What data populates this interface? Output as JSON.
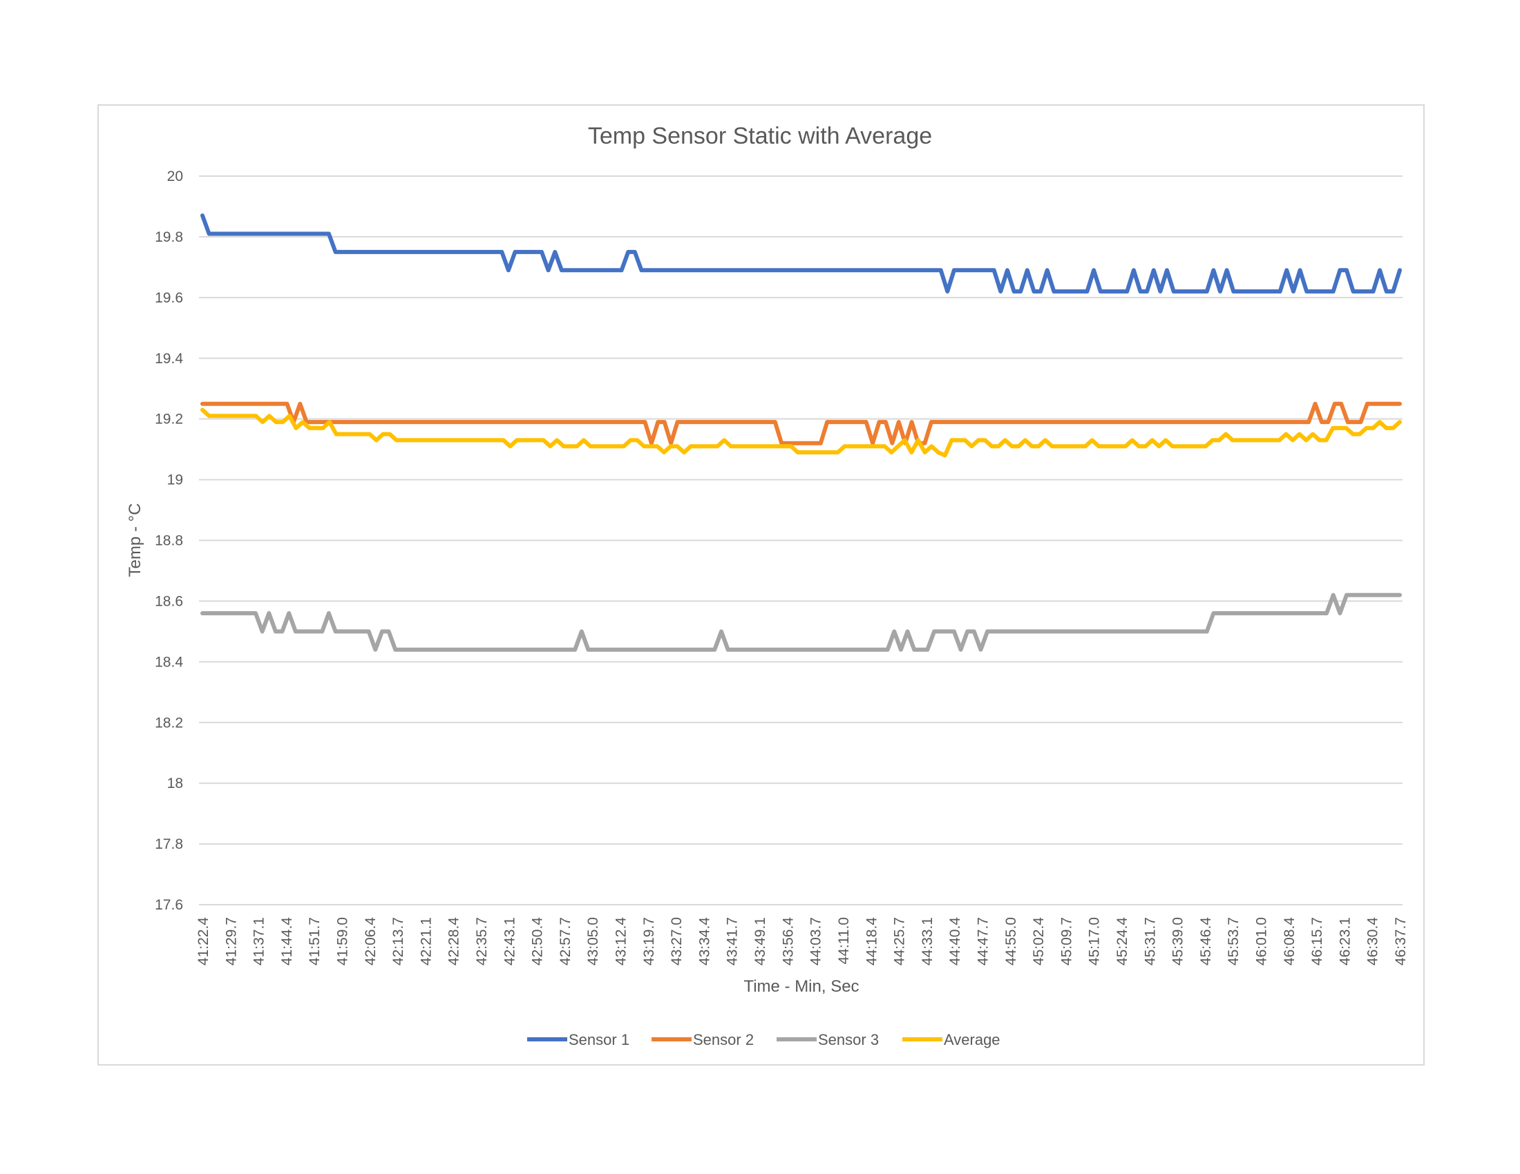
{
  "chart_data": {
    "type": "line",
    "title": "Temp Sensor Static with Average",
    "xlabel": "Time - Min, Sec",
    "ylabel": "Temp - °C",
    "ylim": [
      17.6,
      20
    ],
    "yticks": [
      "20",
      "19.8",
      "19.6",
      "19.4",
      "19.2",
      "19",
      "18.8",
      "18.6",
      "18.4",
      "18.2",
      "18",
      "17.8",
      "17.6"
    ],
    "ytick_values": [
      20,
      19.8,
      19.6,
      19.4,
      19.2,
      19,
      18.8,
      18.6,
      18.4,
      18.2,
      18,
      17.8,
      17.6
    ],
    "grid": true,
    "legend_position": "bottom",
    "x_tick_labels": [
      "41:22.4",
      "41:29.7",
      "41:37.1",
      "41:44.4",
      "41:51.7",
      "41:59.0",
      "42:06.4",
      "42:13.7",
      "42:21.1",
      "42:28.4",
      "42:35.7",
      "42:43.1",
      "42:50.4",
      "42:57.7",
      "43:05.0",
      "43:12.4",
      "43:19.7",
      "43:27.0",
      "43:34.4",
      "43:41.7",
      "43:49.1",
      "43:56.4",
      "44:03.7",
      "44:11.0",
      "44:18.4",
      "44:25.7",
      "44:33.1",
      "44:40.4",
      "44:47.7",
      "44:55.0",
      "45:02.4",
      "45:09.7",
      "45:17.0",
      "45:24.4",
      "45:31.7",
      "45:39.0",
      "45:46.4",
      "45:53.7",
      "46:01.0",
      "46:08.4",
      "46:15.7",
      "46:23.1",
      "46:30.4",
      "46:37.7"
    ],
    "series": [
      {
        "name": "Sensor 1",
        "color": "#4472C4",
        "values": [
          19.87,
          19.81,
          19.81,
          19.81,
          19.81,
          19.81,
          19.81,
          19.81,
          19.81,
          19.81,
          19.81,
          19.81,
          19.81,
          19.81,
          19.81,
          19.81,
          19.81,
          19.81,
          19.81,
          19.81,
          19.75,
          19.75,
          19.75,
          19.75,
          19.75,
          19.75,
          19.75,
          19.75,
          19.75,
          19.75,
          19.75,
          19.75,
          19.75,
          19.75,
          19.75,
          19.75,
          19.75,
          19.75,
          19.75,
          19.75,
          19.75,
          19.75,
          19.75,
          19.75,
          19.75,
          19.75,
          19.69,
          19.75,
          19.75,
          19.75,
          19.75,
          19.75,
          19.69,
          19.75,
          19.69,
          19.69,
          19.69,
          19.69,
          19.69,
          19.69,
          19.69,
          19.69,
          19.69,
          19.69,
          19.75,
          19.75,
          19.69,
          19.69,
          19.69,
          19.69,
          19.69,
          19.69,
          19.69,
          19.69,
          19.69,
          19.69,
          19.69,
          19.69,
          19.69,
          19.69,
          19.69,
          19.69,
          19.69,
          19.69,
          19.69,
          19.69,
          19.69,
          19.69,
          19.69,
          19.69,
          19.69,
          19.69,
          19.69,
          19.69,
          19.69,
          19.69,
          19.69,
          19.69,
          19.69,
          19.69,
          19.69,
          19.69,
          19.69,
          19.69,
          19.69,
          19.69,
          19.69,
          19.69,
          19.69,
          19.69,
          19.69,
          19.69,
          19.62,
          19.69,
          19.69,
          19.69,
          19.69,
          19.69,
          19.69,
          19.69,
          19.62,
          19.69,
          19.62,
          19.62,
          19.69,
          19.62,
          19.62,
          19.69,
          19.62,
          19.62,
          19.62,
          19.62,
          19.62,
          19.62,
          19.69,
          19.62,
          19.62,
          19.62,
          19.62,
          19.62,
          19.69,
          19.62,
          19.62,
          19.69,
          19.62,
          19.69,
          19.62,
          19.62,
          19.62,
          19.62,
          19.62,
          19.62,
          19.69,
          19.62,
          19.69,
          19.62,
          19.62,
          19.62,
          19.62,
          19.62,
          19.62,
          19.62,
          19.62,
          19.69,
          19.62,
          19.69,
          19.62,
          19.62,
          19.62,
          19.62,
          19.62,
          19.69,
          19.69,
          19.62,
          19.62,
          19.62,
          19.62,
          19.69,
          19.62,
          19.62,
          19.69
        ]
      },
      {
        "name": "Sensor 2",
        "color": "#ED7D31",
        "values": [
          19.25,
          19.25,
          19.25,
          19.25,
          19.25,
          19.25,
          19.25,
          19.25,
          19.25,
          19.25,
          19.25,
          19.25,
          19.25,
          19.25,
          19.19,
          19.25,
          19.19,
          19.19,
          19.19,
          19.19,
          19.19,
          19.19,
          19.19,
          19.19,
          19.19,
          19.19,
          19.19,
          19.19,
          19.19,
          19.19,
          19.19,
          19.19,
          19.19,
          19.19,
          19.19,
          19.19,
          19.19,
          19.19,
          19.19,
          19.19,
          19.19,
          19.19,
          19.19,
          19.19,
          19.19,
          19.19,
          19.19,
          19.19,
          19.19,
          19.19,
          19.19,
          19.19,
          19.19,
          19.19,
          19.19,
          19.19,
          19.19,
          19.19,
          19.19,
          19.19,
          19.19,
          19.19,
          19.19,
          19.19,
          19.19,
          19.19,
          19.19,
          19.19,
          19.19,
          19.12,
          19.19,
          19.19,
          19.12,
          19.19,
          19.19,
          19.19,
          19.19,
          19.19,
          19.19,
          19.19,
          19.19,
          19.19,
          19.19,
          19.19,
          19.19,
          19.19,
          19.19,
          19.19,
          19.19,
          19.12,
          19.12,
          19.12,
          19.12,
          19.12,
          19.12,
          19.12,
          19.19,
          19.19,
          19.19,
          19.19,
          19.19,
          19.19,
          19.19,
          19.12,
          19.19,
          19.19,
          19.12,
          19.19,
          19.12,
          19.19,
          19.12,
          19.12,
          19.19,
          19.19,
          19.19,
          19.19,
          19.19,
          19.19,
          19.19,
          19.19,
          19.19,
          19.19,
          19.19,
          19.19,
          19.19,
          19.19,
          19.19,
          19.19,
          19.19,
          19.19,
          19.19,
          19.19,
          19.19,
          19.19,
          19.19,
          19.19,
          19.19,
          19.19,
          19.19,
          19.19,
          19.19,
          19.19,
          19.19,
          19.19,
          19.19,
          19.19,
          19.19,
          19.19,
          19.19,
          19.19,
          19.19,
          19.19,
          19.19,
          19.19,
          19.19,
          19.19,
          19.19,
          19.19,
          19.19,
          19.19,
          19.19,
          19.19,
          19.19,
          19.19,
          19.19,
          19.19,
          19.19,
          19.19,
          19.19,
          19.19,
          19.19,
          19.25,
          19.19,
          19.19,
          19.25,
          19.25,
          19.19,
          19.19,
          19.19,
          19.25,
          19.25,
          19.25,
          19.25,
          19.25,
          19.25
        ]
      },
      {
        "name": "Sensor 3",
        "color": "#A5A5A5",
        "values": [
          18.56,
          18.56,
          18.56,
          18.56,
          18.56,
          18.56,
          18.56,
          18.56,
          18.56,
          18.5,
          18.56,
          18.5,
          18.5,
          18.56,
          18.5,
          18.5,
          18.5,
          18.5,
          18.5,
          18.56,
          18.5,
          18.5,
          18.5,
          18.5,
          18.5,
          18.5,
          18.44,
          18.5,
          18.5,
          18.44,
          18.44,
          18.44,
          18.44,
          18.44,
          18.44,
          18.44,
          18.44,
          18.44,
          18.44,
          18.44,
          18.44,
          18.44,
          18.44,
          18.44,
          18.44,
          18.44,
          18.44,
          18.44,
          18.44,
          18.44,
          18.44,
          18.44,
          18.44,
          18.44,
          18.44,
          18.44,
          18.44,
          18.5,
          18.44,
          18.44,
          18.44,
          18.44,
          18.44,
          18.44,
          18.44,
          18.44,
          18.44,
          18.44,
          18.44,
          18.44,
          18.44,
          18.44,
          18.44,
          18.44,
          18.44,
          18.44,
          18.44,
          18.44,
          18.5,
          18.44,
          18.44,
          18.44,
          18.44,
          18.44,
          18.44,
          18.44,
          18.44,
          18.44,
          18.44,
          18.44,
          18.44,
          18.44,
          18.44,
          18.44,
          18.44,
          18.44,
          18.44,
          18.44,
          18.44,
          18.44,
          18.44,
          18.44,
          18.44,
          18.44,
          18.5,
          18.44,
          18.5,
          18.44,
          18.44,
          18.44,
          18.5,
          18.5,
          18.5,
          18.5,
          18.44,
          18.5,
          18.5,
          18.44,
          18.5,
          18.5,
          18.5,
          18.5,
          18.5,
          18.5,
          18.5,
          18.5,
          18.5,
          18.5,
          18.5,
          18.5,
          18.5,
          18.5,
          18.5,
          18.5,
          18.5,
          18.5,
          18.5,
          18.5,
          18.5,
          18.5,
          18.5,
          18.5,
          18.5,
          18.5,
          18.5,
          18.5,
          18.5,
          18.5,
          18.5,
          18.5,
          18.5,
          18.5,
          18.56,
          18.56,
          18.56,
          18.56,
          18.56,
          18.56,
          18.56,
          18.56,
          18.56,
          18.56,
          18.56,
          18.56,
          18.56,
          18.56,
          18.56,
          18.56,
          18.56,
          18.56,
          18.62,
          18.56,
          18.62,
          18.62,
          18.62,
          18.62,
          18.62,
          18.62,
          18.62,
          18.62,
          18.62
        ]
      },
      {
        "name": "Average",
        "color": "#FFC000",
        "values": [
          19.23,
          19.21,
          19.21,
          19.21,
          19.21,
          19.21,
          19.21,
          19.21,
          19.21,
          19.19,
          19.21,
          19.19,
          19.19,
          19.21,
          19.17,
          19.19,
          19.17,
          19.17,
          19.17,
          19.19,
          19.15,
          19.15,
          19.15,
          19.15,
          19.15,
          19.15,
          19.13,
          19.15,
          19.15,
          19.13,
          19.13,
          19.13,
          19.13,
          19.13,
          19.13,
          19.13,
          19.13,
          19.13,
          19.13,
          19.13,
          19.13,
          19.13,
          19.13,
          19.13,
          19.13,
          19.13,
          19.11,
          19.13,
          19.13,
          19.13,
          19.13,
          19.13,
          19.11,
          19.13,
          19.11,
          19.11,
          19.11,
          19.13,
          19.11,
          19.11,
          19.11,
          19.11,
          19.11,
          19.11,
          19.13,
          19.13,
          19.11,
          19.11,
          19.11,
          19.09,
          19.11,
          19.11,
          19.09,
          19.11,
          19.11,
          19.11,
          19.11,
          19.11,
          19.13,
          19.11,
          19.11,
          19.11,
          19.11,
          19.11,
          19.11,
          19.11,
          19.11,
          19.11,
          19.11,
          19.09,
          19.09,
          19.09,
          19.09,
          19.09,
          19.09,
          19.09,
          19.11,
          19.11,
          19.11,
          19.11,
          19.11,
          19.11,
          19.11,
          19.09,
          19.11,
          19.13,
          19.09,
          19.13,
          19.09,
          19.11,
          19.09,
          19.08,
          19.13,
          19.13,
          19.13,
          19.11,
          19.13,
          19.13,
          19.11,
          19.11,
          19.13,
          19.11,
          19.11,
          19.13,
          19.11,
          19.11,
          19.13,
          19.11,
          19.11,
          19.11,
          19.11,
          19.11,
          19.11,
          19.13,
          19.11,
          19.11,
          19.11,
          19.11,
          19.11,
          19.13,
          19.11,
          19.11,
          19.13,
          19.11,
          19.13,
          19.11,
          19.11,
          19.11,
          19.11,
          19.11,
          19.11,
          19.13,
          19.13,
          19.15,
          19.13,
          19.13,
          19.13,
          19.13,
          19.13,
          19.13,
          19.13,
          19.13,
          19.15,
          19.13,
          19.15,
          19.13,
          19.15,
          19.13,
          19.13,
          19.17,
          19.17,
          19.17,
          19.15,
          19.15,
          19.17,
          19.17,
          19.19,
          19.17,
          19.17,
          19.19
        ]
      }
    ]
  }
}
